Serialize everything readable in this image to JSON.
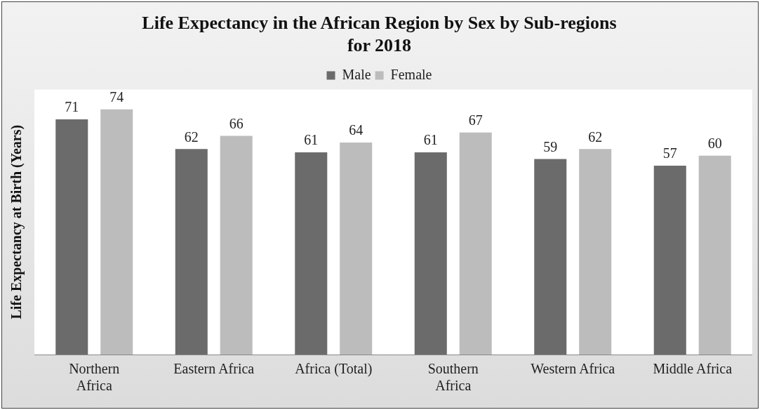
{
  "chart_data": {
    "type": "bar",
    "title": [
      "Life Expectancy in the African Region by Sex by Sub-regions",
      "for 2018"
    ],
    "ylabel": "Life Expectancy at Birth (Years)",
    "categories": [
      "Northern\nAfrica",
      "Eastern Africa",
      "Africa (Total)",
      "Southern\nAfrica",
      "Western Africa",
      "Middle Africa"
    ],
    "series": [
      {
        "name": "Male",
        "color": "#6b6b6b",
        "values": [
          71,
          62,
          61,
          61,
          59,
          57
        ]
      },
      {
        "name": "Female",
        "color": "#bcbcbc",
        "values": [
          74,
          66,
          64,
          67,
          62,
          60
        ]
      }
    ],
    "ylim": [
      0,
      80
    ],
    "tick_labels": "x",
    "grid": false,
    "legend": "top",
    "data_labels": true
  }
}
